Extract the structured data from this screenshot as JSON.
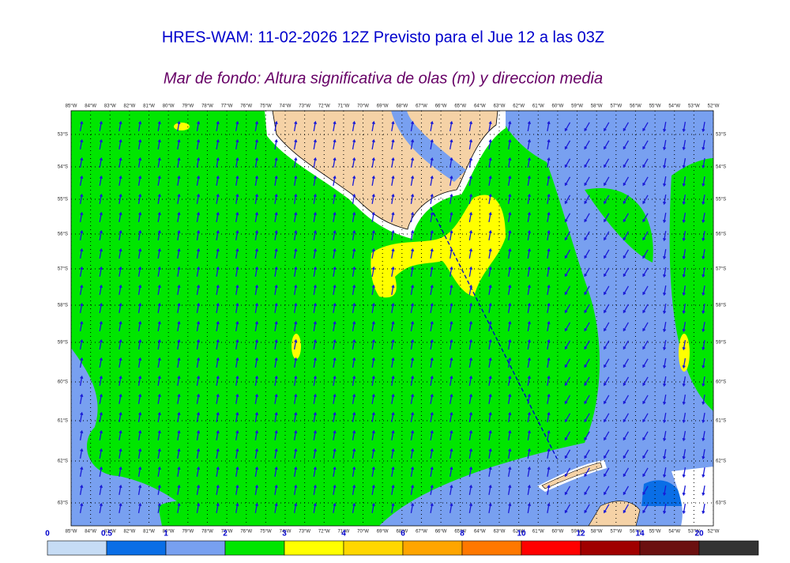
{
  "header": {
    "title": "HRES-WAM: 11-02-2026 12Z Previsto para el Jue 12 a las 03Z",
    "subtitle": "Mar de fondo: Altura significativa de olas (m) y direccion media"
  },
  "map": {
    "longitudes": [
      "85°W",
      "84°W",
      "83°W",
      "82°W",
      "81°W",
      "80°W",
      "79°W",
      "78°W",
      "77°W",
      "76°W",
      "75°W",
      "74°W",
      "73°W",
      "72°W",
      "71°W",
      "70°W",
      "69°W",
      "68°W",
      "67°W",
      "66°W",
      "65°W",
      "64°W",
      "63°W",
      "62°W",
      "61°W",
      "60°W",
      "59°W",
      "58°W",
      "57°W",
      "56°W",
      "55°W",
      "54°W",
      "53°W",
      "52°W"
    ],
    "latitudes": [
      "53°S",
      "54°S",
      "55°S",
      "56°S",
      "57°S",
      "58°S",
      "59°S",
      "60°S",
      "61°S",
      "62°S",
      "63°S"
    ]
  },
  "colorbar": {
    "ticks": [
      0,
      0.5,
      1,
      2,
      3,
      4,
      6,
      8,
      10,
      12,
      14,
      20
    ],
    "colors": [
      "#c6dcf5",
      "#0a6ee6",
      "#78a0f0",
      "#00e600",
      "#ffff00",
      "#ffd700",
      "#ffa500",
      "#ff7800",
      "#ff0000",
      "#a00000",
      "#6b1010",
      "#333333"
    ]
  }
}
